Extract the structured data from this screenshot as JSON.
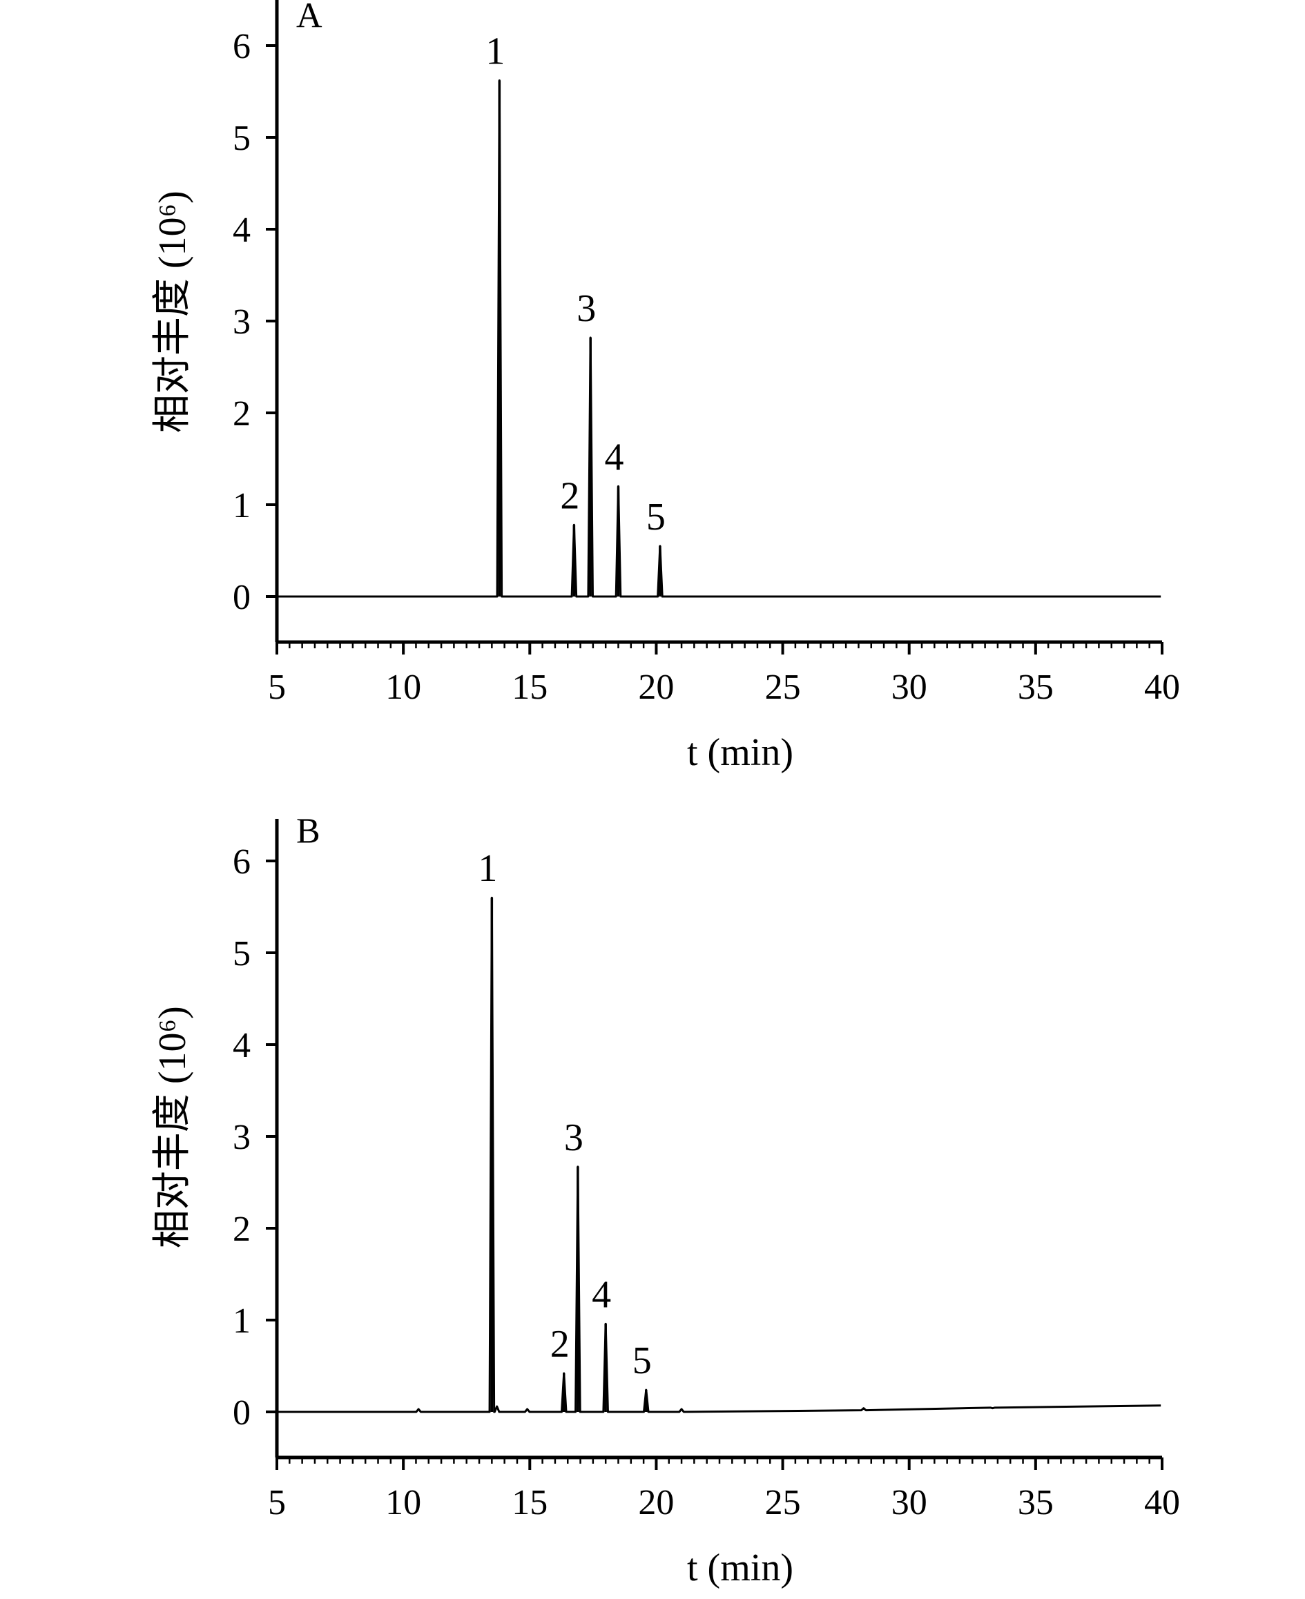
{
  "chart_data": [
    {
      "type": "line",
      "panel_label": "A",
      "xlabel": "t (min)",
      "ylabel": "相对丰度 (10⁶)",
      "xlim": [
        5,
        40
      ],
      "ylim": [
        -0.5,
        6.5
      ],
      "xticks": [
        5,
        10,
        15,
        20,
        25,
        30,
        35,
        40
      ],
      "yticks": [
        0,
        1,
        2,
        3,
        4,
        5,
        6
      ],
      "grid": false,
      "baseline": 0.0,
      "baseline_drift": 0.0,
      "noise": [],
      "peaks": [
        {
          "label": "1",
          "t": 13.8,
          "height": 5.62
        },
        {
          "label": "2",
          "t": 16.75,
          "height": 0.78
        },
        {
          "label": "3",
          "t": 17.4,
          "height": 2.82
        },
        {
          "label": "4",
          "t": 18.5,
          "height": 1.2
        },
        {
          "label": "5",
          "t": 20.15,
          "height": 0.55
        }
      ]
    },
    {
      "type": "line",
      "panel_label": "B",
      "xlabel": "t (min)",
      "ylabel": "相对丰度 (10⁶)",
      "xlim": [
        5,
        40
      ],
      "ylim": [
        -0.5,
        6.5
      ],
      "xticks": [
        5,
        10,
        15,
        20,
        25,
        30,
        35,
        40
      ],
      "yticks": [
        0,
        1,
        2,
        3,
        4,
        5,
        6
      ],
      "grid": false,
      "baseline": 0.0,
      "baseline_drift": 0.07,
      "noise": [
        {
          "t": 10.6,
          "height": 0.03
        },
        {
          "t": 13.7,
          "height": 0.06
        },
        {
          "t": 14.9,
          "height": 0.03
        },
        {
          "t": 21.0,
          "height": 0.03
        },
        {
          "t": 28.2,
          "height": 0.04
        },
        {
          "t": 33.3,
          "height": 0.04
        }
      ],
      "peaks": [
        {
          "label": "1",
          "t": 13.5,
          "height": 5.6
        },
        {
          "label": "2",
          "t": 16.35,
          "height": 0.42
        },
        {
          "label": "3",
          "t": 16.9,
          "height": 2.67
        },
        {
          "label": "4",
          "t": 18.0,
          "height": 0.96
        },
        {
          "label": "5",
          "t": 19.6,
          "height": 0.24
        }
      ]
    }
  ]
}
